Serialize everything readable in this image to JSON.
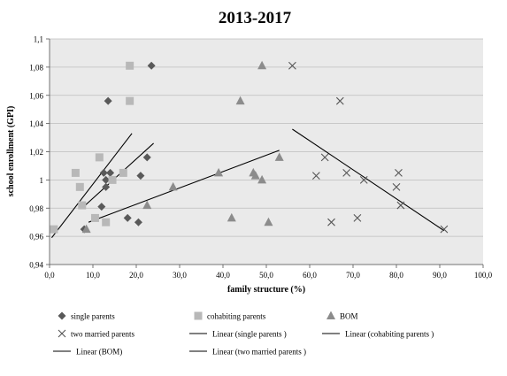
{
  "chart_data": {
    "type": "scatter",
    "title": "2013-2017",
    "xlabel": "family structure (%)",
    "ylabel": "school enrollment (GPI)",
    "xlim": [
      0,
      100
    ],
    "ylim": [
      0.94,
      1.1
    ],
    "x_ticks": [
      0,
      10,
      20,
      30,
      40,
      50,
      60,
      70,
      80,
      90,
      100
    ],
    "y_ticks": [
      0.94,
      0.96,
      0.98,
      1.0,
      1.02,
      1.04,
      1.06,
      1.08,
      1.1
    ],
    "x_tick_labels": [
      "0,0",
      "10,0",
      "20,0",
      "30,0",
      "40,0",
      "50,0",
      "60,0",
      "70,0",
      "80,0",
      "90,0",
      "100,0"
    ],
    "y_tick_labels": [
      "0,94",
      "0,96",
      "0,98",
      "1",
      "1,02",
      "1,04",
      "1,06",
      "1,08",
      "1,1"
    ],
    "grid": "horizontal",
    "legend_position": "bottom",
    "series": [
      {
        "name": "single parents",
        "marker": "diamond",
        "color": "#595959",
        "points": [
          [
            8,
            0.965
          ],
          [
            12,
            0.981
          ],
          [
            12.5,
            1.005
          ],
          [
            13,
            0.995
          ],
          [
            13,
            1.0
          ],
          [
            13.5,
            1.056
          ],
          [
            14,
            1.005
          ],
          [
            18,
            0.973
          ],
          [
            20.5,
            0.97
          ],
          [
            21,
            1.003
          ],
          [
            22.5,
            1.016
          ],
          [
            23.5,
            1.081
          ]
        ]
      },
      {
        "name": "cohabiting parents",
        "marker": "square",
        "color": "#b8b8b8",
        "points": [
          [
            1,
            0.965
          ],
          [
            6,
            1.005
          ],
          [
            7,
            0.995
          ],
          [
            7.5,
            0.982
          ],
          [
            10.5,
            0.973
          ],
          [
            11.5,
            1.016
          ],
          [
            13,
            0.97
          ],
          [
            14.5,
            1.0
          ],
          [
            17,
            1.005
          ],
          [
            18.5,
            1.081
          ],
          [
            18.5,
            1.056
          ]
        ]
      },
      {
        "name": "BOM",
        "marker": "triangle",
        "color": "#8c8c8c",
        "points": [
          [
            8.5,
            0.965
          ],
          [
            22.5,
            0.982
          ],
          [
            28.5,
            0.995
          ],
          [
            39,
            1.005
          ],
          [
            42,
            0.973
          ],
          [
            44,
            1.056
          ],
          [
            47,
            1.005
          ],
          [
            47.5,
            1.003
          ],
          [
            49,
            1.081
          ],
          [
            49,
            1.0
          ],
          [
            50.5,
            0.97
          ],
          [
            53,
            1.016
          ]
        ]
      },
      {
        "name": "two married parents",
        "marker": "x",
        "color": "#555555",
        "points": [
          [
            56,
            1.081
          ],
          [
            61.5,
            1.003
          ],
          [
            63.5,
            1.016
          ],
          [
            65,
            0.97
          ],
          [
            67,
            1.056
          ],
          [
            68.5,
            1.005
          ],
          [
            71,
            0.973
          ],
          [
            72.5,
            1.0
          ],
          [
            80,
            0.995
          ],
          [
            80.5,
            1.005
          ],
          [
            81,
            0.982
          ],
          [
            91,
            0.965
          ]
        ]
      }
    ],
    "trendlines": [
      {
        "name": "Linear (single parents )",
        "x": [
          0.5,
          19
        ],
        "y": [
          0.959,
          1.033
        ]
      },
      {
        "name": "Linear (cohabiting parents )",
        "x": [
          7.5,
          24
        ],
        "y": [
          0.98,
          1.026
        ]
      },
      {
        "name": "Linear (BOM)",
        "x": [
          9,
          53
        ],
        "y": [
          0.97,
          1.021
        ]
      },
      {
        "name": "Linear (two married parents )",
        "x": [
          56,
          91
        ],
        "y": [
          1.036,
          0.964
        ]
      }
    ]
  }
}
